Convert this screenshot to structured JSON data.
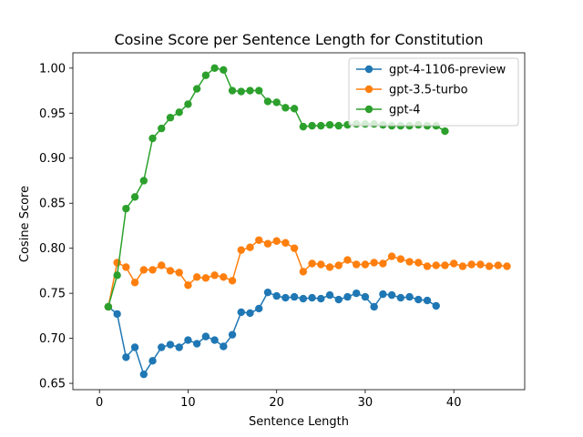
{
  "chart_data": {
    "type": "line",
    "title": "Cosine Score per Sentence Length for Constitution",
    "xlabel": "Sentence Length",
    "ylabel": "Cosine Score",
    "xlim": [
      -3,
      48
    ],
    "ylim": [
      0.643,
      1.017
    ],
    "xticks": [
      0,
      10,
      20,
      30,
      40
    ],
    "yticks": [
      0.65,
      0.7,
      0.75,
      0.8,
      0.85,
      0.9,
      0.95,
      1.0
    ],
    "grid": false,
    "legend_position": "top-right",
    "series": [
      {
        "name": "gpt-4-1106-preview",
        "color": "#1f77b4",
        "x": [
          1,
          2,
          3,
          4,
          5,
          6,
          7,
          8,
          9,
          10,
          11,
          12,
          13,
          14,
          15,
          16,
          17,
          18,
          19,
          20,
          21,
          22,
          23,
          24,
          25,
          26,
          27,
          28,
          29,
          30,
          31,
          32,
          33,
          34,
          35,
          36,
          37,
          38
        ],
        "y": [
          0.735,
          0.727,
          0.679,
          0.69,
          0.66,
          0.675,
          0.69,
          0.693,
          0.69,
          0.698,
          0.694,
          0.702,
          0.698,
          0.691,
          0.704,
          0.729,
          0.728,
          0.733,
          0.751,
          0.747,
          0.745,
          0.746,
          0.744,
          0.745,
          0.744,
          0.748,
          0.743,
          0.746,
          0.75,
          0.746,
          0.735,
          0.749,
          0.748,
          0.745,
          0.746,
          0.743,
          0.742,
          0.736
        ]
      },
      {
        "name": "gpt-3.5-turbo",
        "color": "#ff7f0e",
        "x": [
          1,
          2,
          3,
          4,
          5,
          6,
          7,
          8,
          9,
          10,
          11,
          12,
          13,
          14,
          15,
          16,
          17,
          18,
          19,
          20,
          21,
          22,
          23,
          24,
          25,
          26,
          27,
          28,
          29,
          30,
          31,
          32,
          33,
          34,
          35,
          36,
          37,
          38,
          39,
          40,
          41,
          42,
          43,
          44,
          45,
          46
        ],
        "y": [
          0.735,
          0.784,
          0.779,
          0.762,
          0.776,
          0.776,
          0.781,
          0.775,
          0.773,
          0.759,
          0.768,
          0.767,
          0.77,
          0.768,
          0.764,
          0.798,
          0.801,
          0.809,
          0.805,
          0.808,
          0.806,
          0.8,
          0.774,
          0.783,
          0.782,
          0.779,
          0.781,
          0.787,
          0.782,
          0.782,
          0.784,
          0.783,
          0.791,
          0.788,
          0.785,
          0.784,
          0.78,
          0.781,
          0.781,
          0.783,
          0.78,
          0.782,
          0.782,
          0.78,
          0.781,
          0.78
        ]
      },
      {
        "name": "gpt-4",
        "color": "#2ca02c",
        "x": [
          1,
          2,
          3,
          4,
          5,
          6,
          7,
          8,
          9,
          10,
          11,
          12,
          13,
          14,
          15,
          16,
          17,
          18,
          19,
          20,
          21,
          22,
          23,
          24,
          25,
          26,
          27,
          28,
          29,
          30,
          31,
          32,
          33,
          34,
          35,
          36,
          37,
          38,
          39
        ],
        "y": [
          0.735,
          0.77,
          0.844,
          0.857,
          0.875,
          0.922,
          0.933,
          0.945,
          0.951,
          0.96,
          0.977,
          0.992,
          1.0,
          0.998,
          0.975,
          0.974,
          0.975,
          0.975,
          0.963,
          0.962,
          0.956,
          0.955,
          0.935,
          0.936,
          0.936,
          0.937,
          0.936,
          0.937,
          0.938,
          0.938,
          0.938,
          0.937,
          0.936,
          0.936,
          0.936,
          0.937,
          0.936,
          0.936,
          0.93
        ]
      }
    ]
  }
}
